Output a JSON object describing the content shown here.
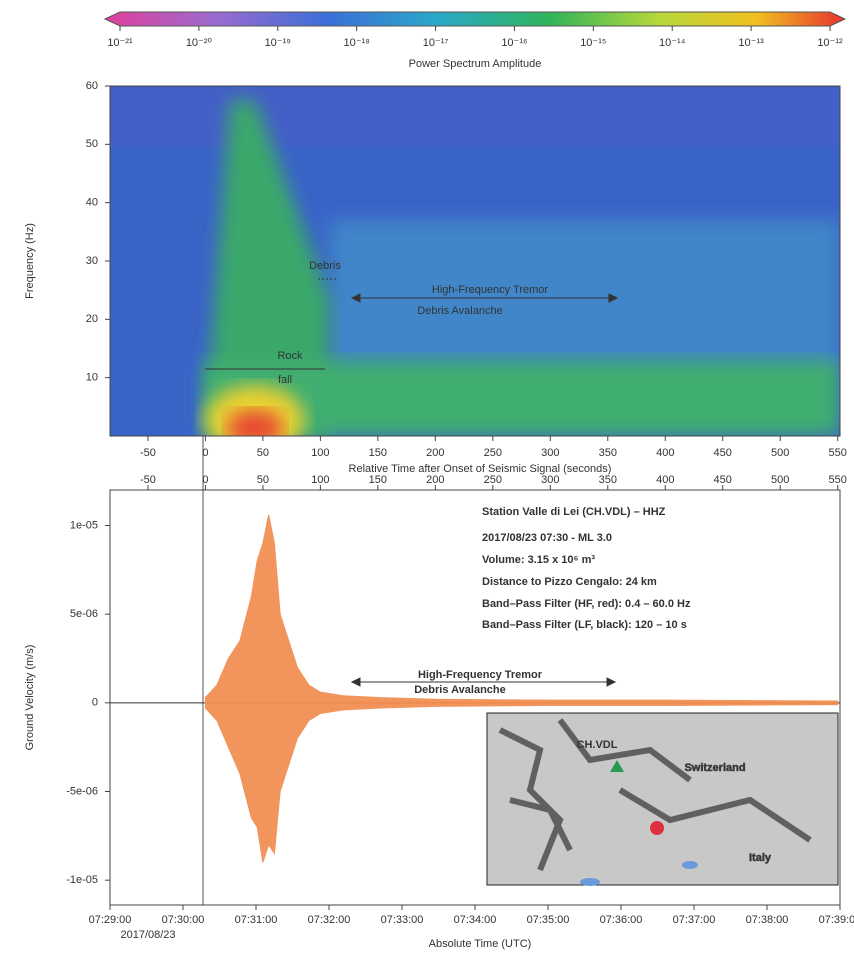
{
  "chart_data": [
    {
      "type": "colorbar",
      "xlabel": "Power Spectrum Amplitude",
      "xscale": "log",
      "xlim": [
        1e-21,
        1e-12
      ],
      "xticks": [
        {
          "value": 1e-21,
          "label": "10⁻²¹"
        },
        {
          "value": 1e-20,
          "label": "10⁻²⁰"
        },
        {
          "value": 1e-19,
          "label": "10⁻¹⁹"
        },
        {
          "value": 1e-18,
          "label": "10⁻¹⁸"
        },
        {
          "value": 1e-17,
          "label": "10⁻¹⁷"
        },
        {
          "value": 1e-16,
          "label": "10⁻¹⁶"
        },
        {
          "value": 1e-15,
          "label": "10⁻¹⁵"
        },
        {
          "value": 1e-14,
          "label": "10⁻¹⁴"
        },
        {
          "value": 1e-13,
          "label": "10⁻¹³"
        },
        {
          "value": 1e-12,
          "label": "10⁻¹²"
        }
      ]
    },
    {
      "type": "heatmap",
      "xlabel": "Relative Time after Onset of Seismic Signal (seconds)",
      "ylabel": "Frequency (Hz)",
      "xlim": [
        -83,
        552
      ],
      "xticks": [
        -50,
        0,
        50,
        100,
        150,
        200,
        250,
        300,
        350,
        400,
        450,
        500,
        550
      ],
      "ylim": [
        0,
        60
      ],
      "yticks": [
        10,
        20,
        30,
        40,
        50,
        60
      ],
      "annotations": [
        "Debris",
        "High-Frequency Tremor",
        "Debris Avalanche",
        "Rock",
        "fall"
      ]
    },
    {
      "type": "area",
      "xlabel": "Absolute Time (UTC)",
      "ylabel": "Ground Velocity (m/s)",
      "date": "2017/08/23",
      "xlim": [
        -83,
        552
      ],
      "xticks": [
        -50,
        0,
        50,
        100,
        150,
        200,
        250,
        300,
        350,
        400,
        450,
        500,
        550
      ],
      "x2lim": [
        0,
        600
      ],
      "x2ticks": [
        {
          "value": 0,
          "label": "07:29:00"
        },
        {
          "value": 60,
          "label": "07:30:00"
        },
        {
          "value": 120,
          "label": "07:31:00"
        },
        {
          "value": 180,
          "label": "07:32:00"
        },
        {
          "value": 240,
          "label": "07:33:00"
        },
        {
          "value": 300,
          "label": "07:34:00"
        },
        {
          "value": 360,
          "label": "07:35:00"
        },
        {
          "value": 420,
          "label": "07:36:00"
        },
        {
          "value": 480,
          "label": "07:37:00"
        },
        {
          "value": 540,
          "label": "07:38:00"
        },
        {
          "value": 600,
          "label": "07:39:00"
        }
      ],
      "ylim": [
        -1.14e-05,
        1.2e-05
      ],
      "yticks": [
        {
          "value": -1e-05,
          "label": "-1e-05"
        },
        {
          "value": -5e-06,
          "label": "-5e-06"
        },
        0,
        {
          "value": 5e-06,
          "label": "5e-06"
        },
        {
          "value": 1e-05,
          "label": "1e-05"
        }
      ],
      "x": [
        0,
        10,
        20,
        30,
        40,
        45,
        50,
        55,
        60,
        65,
        70,
        80,
        90,
        100,
        120,
        150,
        200,
        300,
        400,
        550
      ],
      "series": [
        {
          "color": "#f08a4b",
          "values": [
            3e-07,
            1e-06,
            2.5e-06,
            3.5e-06,
            6e-06,
            8e-06,
            9e-06,
            1.06e-05,
            9e-06,
            5e-06,
            4e-06,
            2e-06,
            1e-06,
            6e-07,
            4e-07,
            3e-07,
            2e-07,
            1.5e-07,
            1.5e-07,
            1e-07
          ]
        },
        {
          "color": "#f08a4b",
          "values": [
            -3e-07,
            -1e-06,
            -2.5e-06,
            -4e-06,
            -6.5e-06,
            -7e-06,
            -9e-06,
            -8e-06,
            -8.5e-06,
            -5e-06,
            -4e-06,
            -2e-06,
            -1e-06,
            -6e-07,
            -4e-07,
            -3e-07,
            -2e-07,
            -1.5e-07,
            -1.5e-07,
            -1e-07
          ]
        }
      ],
      "annotations": [
        "High-Frequency Tremor",
        "Debris Avalanche"
      ],
      "info": [
        "Station Valle di Lei (CH.VDL) – HHZ",
        "2017/08/23 07:30 - ML 3.0",
        "Volume: 3.15 x 10⁶ m³",
        "Distance to Pizzo Cengalo: 24 km",
        "Band–Pass Filter (HF, red): 0.4 – 60.0 Hz",
        "Band–Pass Filter (LF, black): 120 – 10 s"
      ],
      "inset_labels": [
        "CH.VDL",
        "Switzerland",
        "Italy"
      ]
    }
  ]
}
